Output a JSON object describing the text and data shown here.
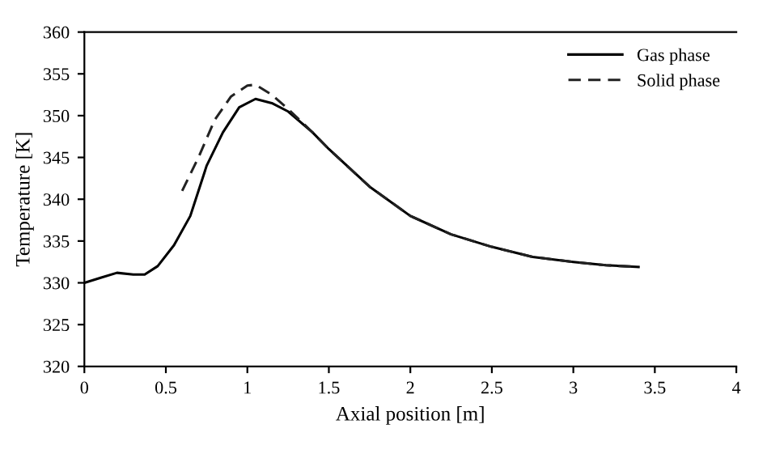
{
  "chart_data": {
    "type": "line",
    "xlabel": "Axial position [m]",
    "ylabel": "Temperature [K]",
    "xlim": [
      0,
      4
    ],
    "xticks": [
      0,
      0.5,
      1,
      1.5,
      2,
      2.5,
      3,
      3.5,
      4
    ],
    "ylim": [
      320,
      360
    ],
    "yticks": [
      320,
      325,
      330,
      335,
      340,
      345,
      350,
      355,
      360
    ],
    "grid": false,
    "legend": "top right",
    "marker": "none",
    "series": [
      {
        "name": "Gas phase",
        "color": "#000000",
        "line_style": "solid",
        "x": [
          0,
          0.1,
          0.2,
          0.3,
          0.37,
          0.45,
          0.55,
          0.65,
          0.75,
          0.85,
          0.95,
          1.05,
          1.15,
          1.25,
          1.4,
          1.5,
          1.75,
          2,
          2.25,
          2.5,
          2.75,
          3,
          3.2,
          3.4
        ],
        "values": [
          330,
          330.6,
          331.2,
          331,
          331,
          332,
          334.5,
          338,
          344,
          348,
          351,
          352,
          351.5,
          350.5,
          348,
          346,
          341.5,
          338,
          335.8,
          334.3,
          333.1,
          332.5,
          332.1,
          331.9
        ]
      },
      {
        "name": "Solid phase",
        "color": "#222222",
        "line_style": "dashed",
        "x": [
          0.6,
          0.7,
          0.8,
          0.9,
          1.0,
          1.05,
          1.15,
          1.25,
          1.4,
          1.5,
          1.75,
          2,
          2.25,
          2.5,
          2.75,
          3,
          3.2,
          3.4
        ],
        "values": [
          341,
          345,
          349.5,
          352.3,
          353.6,
          353.7,
          352.5,
          350.8,
          348,
          346,
          341.5,
          338,
          335.8,
          334.3,
          333.1,
          332.5,
          332.1,
          331.9
        ]
      }
    ]
  }
}
